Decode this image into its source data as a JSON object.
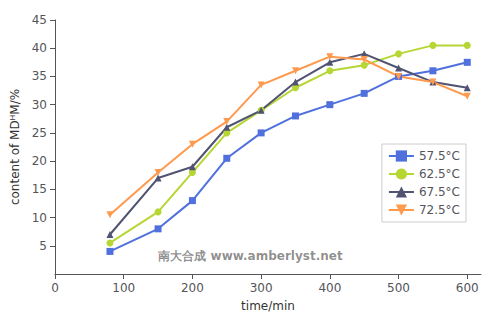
{
  "chart_data": {
    "type": "line",
    "xlabel": "time/min",
    "ylabel": "content of MDᴴM/%",
    "x": [
      80,
      150,
      200,
      250,
      300,
      350,
      400,
      450,
      500,
      550,
      600
    ],
    "series": [
      {
        "name": "57.5°C",
        "marker": "square",
        "values": [
          4,
          8,
          13,
          20.5,
          25,
          28,
          30,
          32,
          35,
          36,
          37.5
        ]
      },
      {
        "name": "62.5°C",
        "marker": "circle",
        "values": [
          5.5,
          11,
          18,
          25,
          29,
          33,
          36,
          37,
          39,
          40.5,
          40.5
        ]
      },
      {
        "name": "67.5°C",
        "marker": "triangle-up",
        "values": [
          7,
          17,
          19,
          26,
          29,
          34,
          37.5,
          39,
          36.5,
          34,
          33
        ]
      },
      {
        "name": "72.5°C",
        "marker": "triangle-down",
        "values": [
          10.5,
          18,
          23,
          27,
          33.5,
          36,
          38.5,
          38,
          35,
          34,
          31.5
        ]
      }
    ],
    "xlim": [
      0,
      620
    ],
    "ylim": [
      0,
      45
    ],
    "xticks": [
      0,
      100,
      200,
      300,
      400,
      500,
      600
    ],
    "yticks": [
      5,
      10,
      15,
      20,
      25,
      30,
      35,
      40,
      45
    ],
    "grid": false,
    "legend": "right",
    "annotations": [
      "南大合成 www.amberlyst.net"
    ]
  }
}
